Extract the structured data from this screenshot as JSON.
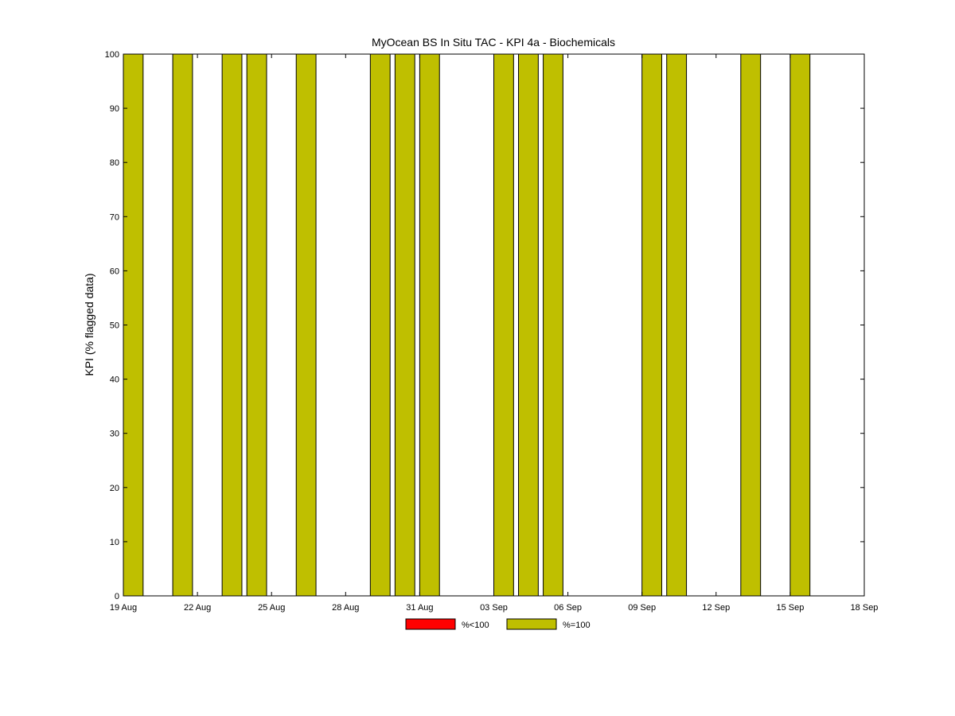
{
  "chart_data": {
    "type": "bar",
    "title": "MyOcean  BS In Situ TAC - KPI 4a - Biochemicals",
    "xlabel": "",
    "ylabel": "KPI (% flagged data)",
    "ylim": [
      0,
      100
    ],
    "yticks": [
      0,
      10,
      20,
      30,
      40,
      50,
      60,
      70,
      80,
      90,
      100
    ],
    "xlim": [
      "2013-08-19",
      "2013-09-18"
    ],
    "xtick_dates": [
      "2013-08-19",
      "2013-08-22",
      "2013-08-25",
      "2013-08-28",
      "2013-08-31",
      "2013-09-03",
      "2013-09-06",
      "2013-09-09",
      "2013-09-12",
      "2013-09-15",
      "2013-09-18"
    ],
    "xtick_labels": [
      "19 Aug",
      "22 Aug",
      "25 Aug",
      "28 Aug",
      "31 Aug",
      "03 Sep",
      "06 Sep",
      "09 Sep",
      "12 Sep",
      "15 Sep",
      "18 Sep"
    ],
    "grid": false,
    "legend_position": "bottom-center",
    "series": [
      {
        "name": "%<100",
        "color": "#ff0000",
        "points": []
      },
      {
        "name": "%=100",
        "color": "#bfbf00",
        "points": [
          {
            "date": "2013-08-19",
            "value": 100
          },
          {
            "date": "2013-08-21",
            "value": 100
          },
          {
            "date": "2013-08-23",
            "value": 100
          },
          {
            "date": "2013-08-24",
            "value": 100
          },
          {
            "date": "2013-08-26",
            "value": 100
          },
          {
            "date": "2013-08-29",
            "value": 100
          },
          {
            "date": "2013-08-30",
            "value": 100
          },
          {
            "date": "2013-08-31",
            "value": 100
          },
          {
            "date": "2013-09-03",
            "value": 100
          },
          {
            "date": "2013-09-04",
            "value": 100
          },
          {
            "date": "2013-09-05",
            "value": 100
          },
          {
            "date": "2013-09-09",
            "value": 100
          },
          {
            "date": "2013-09-10",
            "value": 100
          },
          {
            "date": "2013-09-13",
            "value": 100
          },
          {
            "date": "2013-09-15",
            "value": 100
          }
        ]
      }
    ]
  }
}
